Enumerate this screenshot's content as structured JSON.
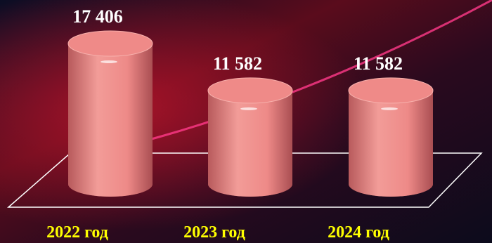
{
  "chart_data": {
    "type": "bar",
    "categories": [
      "2022 год",
      "2023 год",
      "2024 год"
    ],
    "values": [
      17406,
      11582,
      11582
    ],
    "value_labels": [
      "17 406",
      "11 582",
      "11 582"
    ],
    "color": "#ef8a88"
  }
}
